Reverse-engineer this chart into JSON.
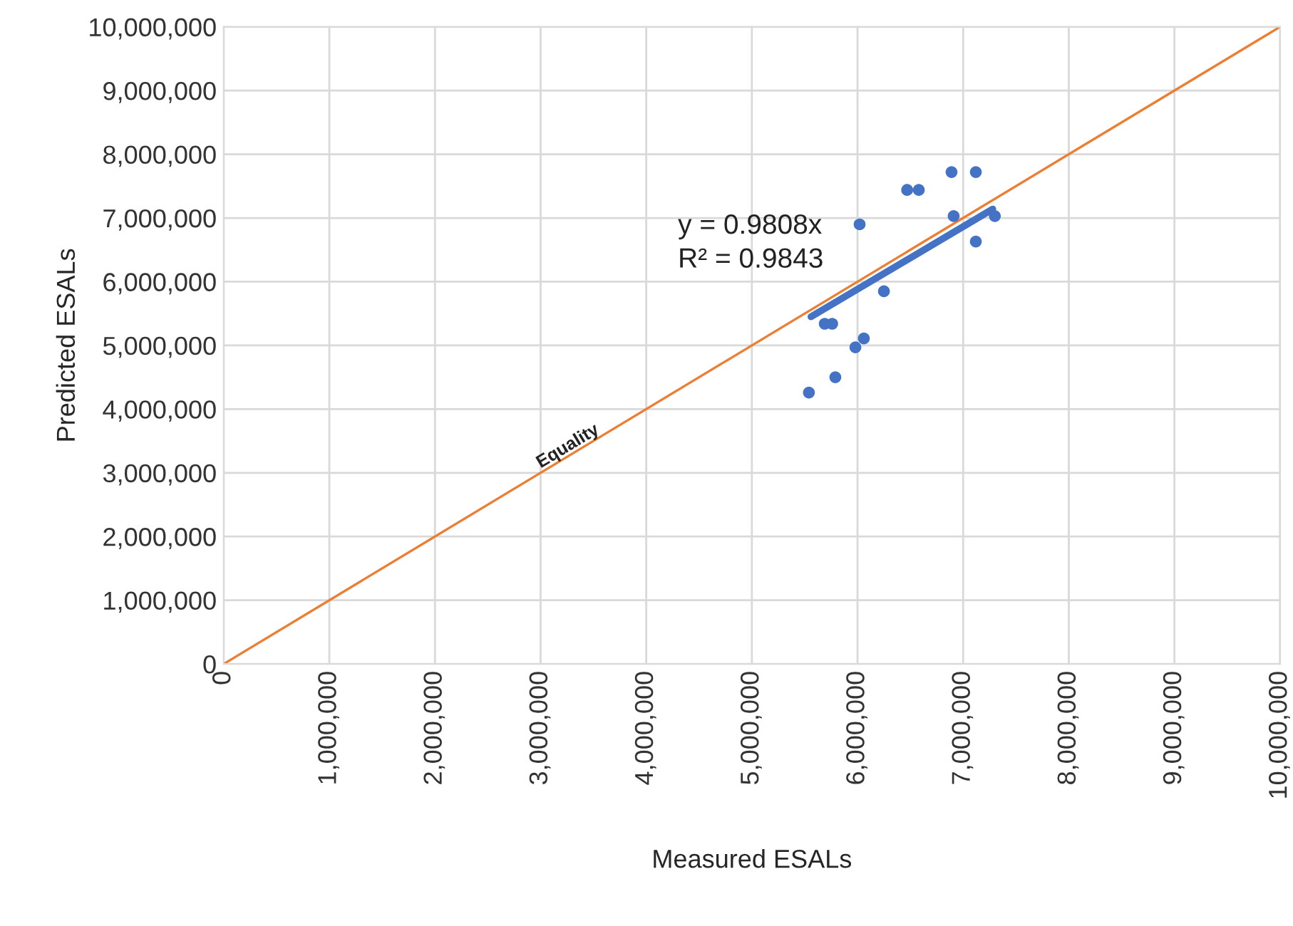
{
  "chart_data": {
    "type": "scatter",
    "xlabel": "Measured ESALs",
    "ylabel": "Predicted ESALs",
    "xlim": [
      0,
      10000000
    ],
    "ylim": [
      0,
      10000000
    ],
    "xticks": [
      {
        "value": 0,
        "label": "0"
      },
      {
        "value": 1000000,
        "label": "1,000,000"
      },
      {
        "value": 2000000,
        "label": "2,000,000"
      },
      {
        "value": 3000000,
        "label": "3,000,000"
      },
      {
        "value": 4000000,
        "label": "4,000,000"
      },
      {
        "value": 5000000,
        "label": "5,000,000"
      },
      {
        "value": 6000000,
        "label": "6,000,000"
      },
      {
        "value": 7000000,
        "label": "7,000,000"
      },
      {
        "value": 8000000,
        "label": "8,000,000"
      },
      {
        "value": 9000000,
        "label": "9,000,000"
      },
      {
        "value": 10000000,
        "label": "10,000,000"
      }
    ],
    "yticks": [
      {
        "value": 0,
        "label": "0"
      },
      {
        "value": 1000000,
        "label": "1,000,000"
      },
      {
        "value": 2000000,
        "label": "2,000,000"
      },
      {
        "value": 3000000,
        "label": "3,000,000"
      },
      {
        "value": 4000000,
        "label": "4,000,000"
      },
      {
        "value": 5000000,
        "label": "5,000,000"
      },
      {
        "value": 6000000,
        "label": "6,000,000"
      },
      {
        "value": 7000000,
        "label": "7,000,000"
      },
      {
        "value": 8000000,
        "label": "8,000,000"
      },
      {
        "value": 9000000,
        "label": "9,000,000"
      },
      {
        "value": 10000000,
        "label": "10,000,000"
      }
    ],
    "grid": true,
    "legend": false,
    "series": [
      {
        "color": "#4472c4",
        "marker": "circle",
        "x": [
          6890000,
          7120000,
          6470000,
          6580000,
          6910000,
          7300000,
          7120000,
          6020000,
          6250000,
          5690000,
          5760000,
          6060000,
          5980000,
          5790000,
          5540000
        ],
        "values": [
          7720000,
          7720000,
          7440000,
          7440000,
          7030000,
          7030000,
          6630000,
          6900000,
          5850000,
          5340000,
          5340000,
          5110000,
          4970000,
          4500000,
          4260000
        ]
      },
      {
        "type": "line",
        "color": "#4472c4",
        "marker": "none",
        "line_style": "solid",
        "x": [
          5560000,
          7280000
        ],
        "values": [
          5450000,
          7140000
        ]
      },
      {
        "type": "line",
        "color": "#ed7d31",
        "marker": "none",
        "line_style": "solid",
        "x": [
          0,
          10000000
        ],
        "values": [
          0,
          10000000
        ]
      }
    ],
    "annotations": [
      "y = 0.9808x\nR² = 0.9843",
      {
        "text": "Equality",
        "x": 3300000,
        "y": 3300000
      }
    ]
  }
}
